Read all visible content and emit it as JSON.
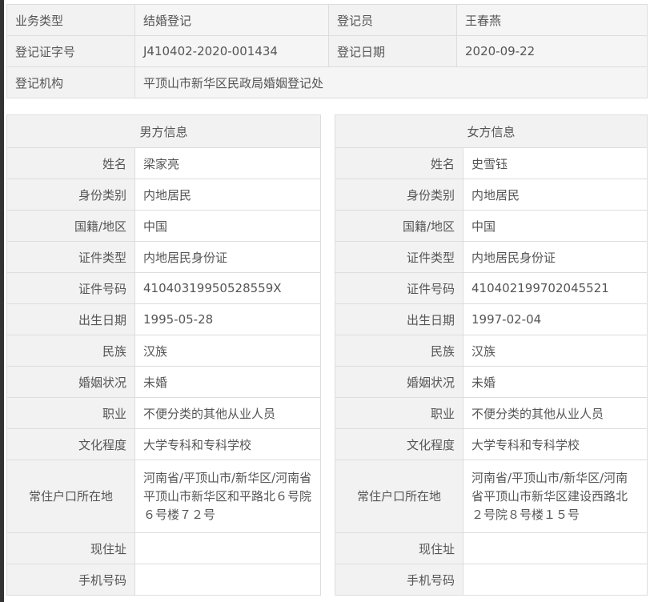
{
  "registration": {
    "business_type_label": "业务类型",
    "business_type": "结婚登记",
    "registrar_label": "登记员",
    "registrar": "王春燕",
    "cert_no_label": "登记证字号",
    "cert_no": "J410402-2020-001434",
    "date_label": "登记日期",
    "date": "2020-09-22",
    "office_label": "登记机构",
    "office": "平顶山市新华区民政局婚姻登记处"
  },
  "labels": [
    "姓名",
    "身份类别",
    "国籍/地区",
    "证件类型",
    "证件号码",
    "出生日期",
    "民族",
    "婚姻状况",
    "职业",
    "文化程度",
    "常住户口所在地",
    "现住址",
    "手机号码"
  ],
  "male": {
    "title": "男方信息",
    "values": [
      "梁家亮",
      "内地居民",
      "中国",
      "内地居民身份证",
      "41040319950528559X",
      "1995-05-28",
      "汉族",
      "未婚",
      "不便分类的其他从业人员",
      "大学专科和专科学校",
      "河南省/平顶山市/新华区/河南省平顶山市新华区和平路北６号院６号楼７２号",
      "",
      ""
    ]
  },
  "female": {
    "title": "女方信息",
    "values": [
      "史雪钰",
      "内地居民",
      "中国",
      "内地居民身份证",
      "410402199702045521",
      "1997-02-04",
      "汉族",
      "未婚",
      "不便分类的其他从业人员",
      "大学专科和专科学校",
      "河南省/平顶山市/新华区/河南省平顶山市新华区建设西路北２号院８号楼１５号",
      "",
      ""
    ]
  }
}
